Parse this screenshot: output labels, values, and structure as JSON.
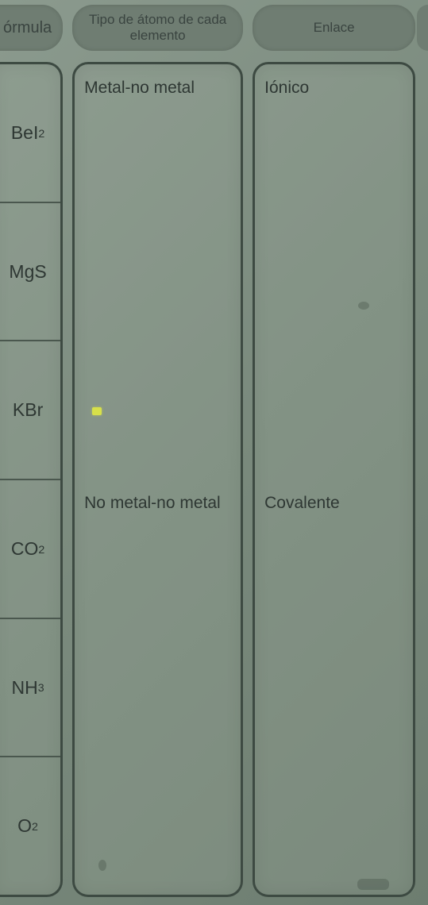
{
  "headers": {
    "formula": "órmula",
    "tipo": "Tipo de átomo de cada elemento",
    "enlace": "Enlace"
  },
  "rows": [
    {
      "formula_html": "BeI<span class='sub'>2</span>",
      "tipo": "Metal-no metal",
      "enlace": "Iónico"
    },
    {
      "formula_html": "MgS",
      "tipo": "",
      "enlace": ""
    },
    {
      "formula_html": "KBr",
      "tipo": "",
      "enlace": ""
    },
    {
      "formula_html": "CO<span class='sub'>2</span>",
      "tipo": "No metal-no metal",
      "enlace": "Covalente"
    },
    {
      "formula_html": "NH<span class='sub'>3</span>",
      "tipo": "",
      "enlace": ""
    },
    {
      "formula_html": "O<span class='sub'>2</span>",
      "tipo": "",
      "enlace": ""
    }
  ],
  "style": {
    "bg_gradient": [
      "#8b9a8e",
      "#7a8a7d",
      "#6d7d70"
    ],
    "pill_bg": "#6f7d72",
    "pill_text": "#3a4440",
    "box_border": "#3d4a42",
    "row_divider": "#4a574e",
    "text_color": "#2e3733",
    "header_fontsize": 17,
    "formula_fontsize": 23,
    "cell_fontsize": 21,
    "yellow_mark": "#d7e04a"
  }
}
